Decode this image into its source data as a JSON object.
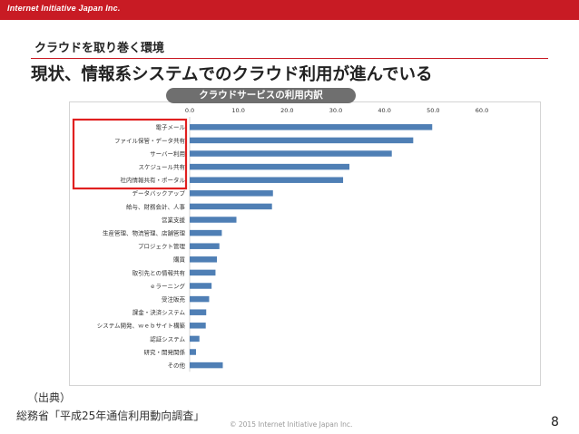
{
  "header": {
    "brand": "Internet Initiative Japan Inc.",
    "subtitle": "クラウドを取り巻く環境",
    "title": "現状、情報系システムでのクラウド利用が進んでいる"
  },
  "chart_title": "クラウドサービスの利用内訳",
  "chart_data": {
    "type": "bar",
    "orientation": "horizontal",
    "title": "クラウドサービスの利用内訳",
    "xlim": [
      0,
      60
    ],
    "tick_labels": [
      "0.0",
      "10.0",
      "20.0",
      "30.0",
      "40.0",
      "50.0",
      "60.0"
    ],
    "categories": [
      "電子メール",
      "ファイル保管・データ共有",
      "サーバー利用",
      "スケジュール共有",
      "社内情報共有・ポータル",
      "データバックアップ",
      "給与、財務会計、人事",
      "営業支援",
      "生産管理、物流管理、店舗管理",
      "プロジェクト管理",
      "購買",
      "取引先との情報共有",
      "ｅラーニング",
      "受注販売",
      "課金・決済システム",
      "システム開発、ｗｅｂサイト構築",
      "認証システム",
      "研究・開発関係",
      "その他"
    ],
    "values": [
      49.8,
      45.9,
      41.5,
      32.8,
      31.5,
      17.1,
      16.9,
      9.6,
      6.6,
      6.1,
      5.6,
      5.3,
      4.5,
      4.0,
      3.4,
      3.3,
      2.0,
      1.3,
      6.8
    ],
    "highlighted_count": 5,
    "bar_color": "#4f7fb5",
    "highlight_color": "#e02020"
  },
  "source": {
    "label": "（出典）",
    "text": "総務省「平成25年通信利用動向調査」"
  },
  "footer": {
    "copyright": "© 2015   Internet Initiative Japan Inc.",
    "page": "8"
  }
}
